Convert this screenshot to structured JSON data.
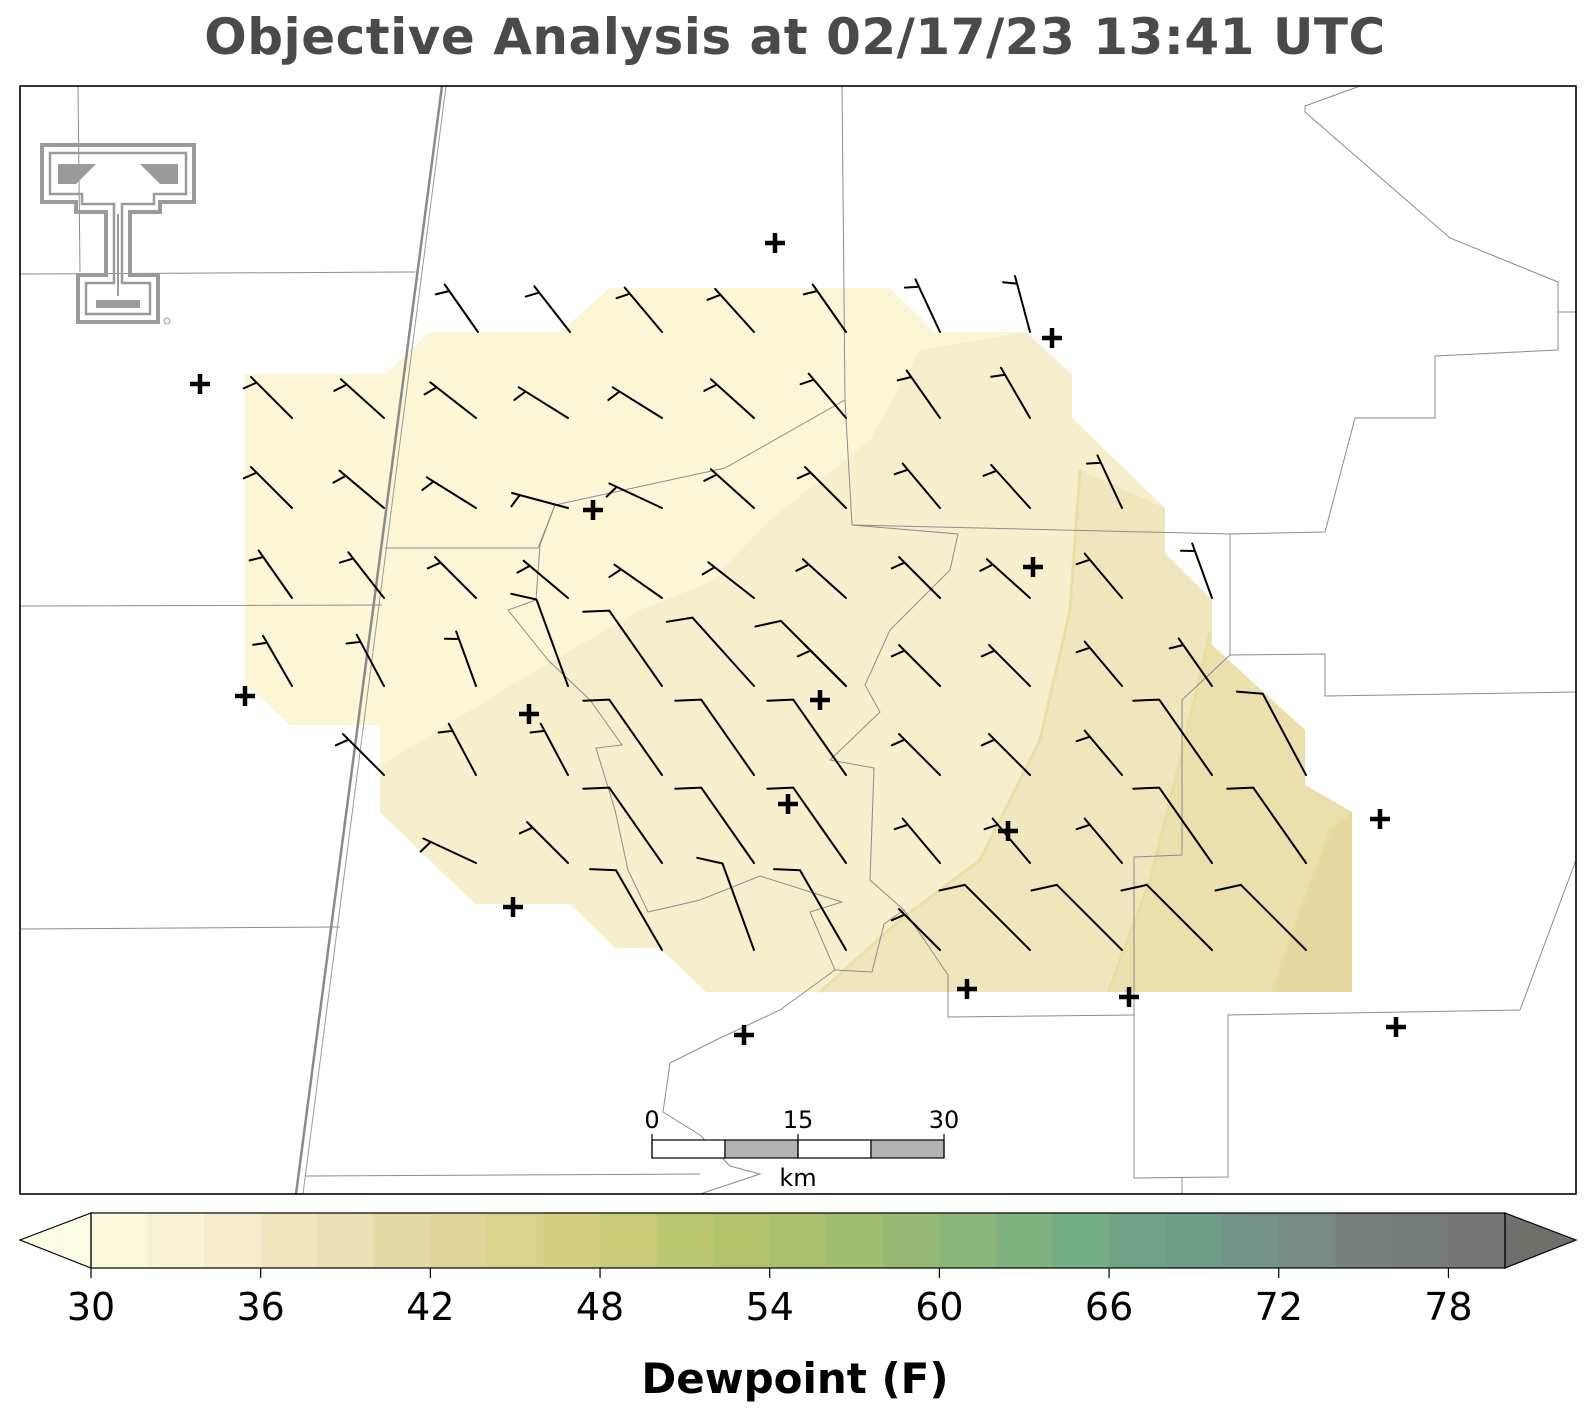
{
  "title": "Objective Analysis at 02/17/23 13:41 UTC",
  "colorbar": {
    "label": "Dewpoint (F)",
    "min": 30,
    "max": 80,
    "step": 2,
    "ticks": [
      "30",
      "36",
      "42",
      "48",
      "54",
      "60",
      "66",
      "72",
      "78"
    ],
    "tick_values": [
      30,
      36,
      42,
      48,
      54,
      60,
      66,
      72,
      78
    ],
    "extend": "both",
    "colors": [
      "#fbf9dc",
      "#f7f3d4",
      "#f4eccb",
      "#efe6bf",
      "#eadfb2",
      "#e4d9a4",
      "#e0d49a",
      "#d9d28d",
      "#d2cf83",
      "#c8cc78",
      "#bcc86f",
      "#b2c46a",
      "#a9c06c",
      "#a1bd70",
      "#96b975",
      "#8bb67a",
      "#80b27f",
      "#76ae83",
      "#6fa586",
      "#6f9d87",
      "#749586",
      "#778d83",
      "#777f7d",
      "#757c78",
      "#747771"
    ],
    "under_color": "#fdfbe6",
    "over_color": "#6d7169"
  },
  "scalebar": {
    "labels": [
      "0",
      "15",
      "30"
    ],
    "unit": "km"
  },
  "field": {
    "description_colors": [
      "#fbf9dc",
      "#f7f3d4",
      "#f4eccb",
      "#efe6bf",
      "#eadfb2",
      "#e4d9a4"
    ]
  },
  "logo": {
    "name": "Texas Tech double-T logo",
    "color": "#9a9a9a"
  },
  "station_count": 17,
  "wind_barbs_note": "Grid of analyzed wind barbs (roughly 5-10 kt, from the NW to W)"
}
